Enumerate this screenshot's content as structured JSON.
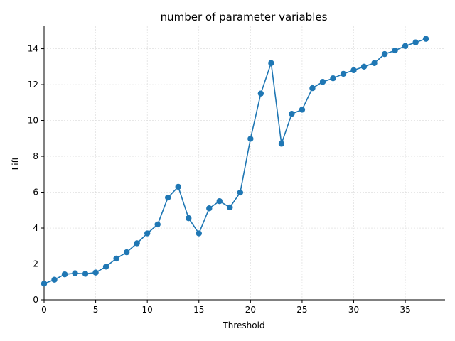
{
  "chart_data": {
    "type": "line",
    "title": "number of parameter variables",
    "xlabel": "Threshold",
    "ylabel": "Lift",
    "xlim": [
      0,
      38.85
    ],
    "ylim": [
      0,
      15.25
    ],
    "xticks": [
      0,
      5,
      10,
      15,
      20,
      25,
      30,
      35
    ],
    "yticks": [
      0,
      2,
      4,
      6,
      8,
      10,
      12,
      14
    ],
    "grid": true,
    "legend": "none",
    "color": "#1f77b4",
    "marker": "circle",
    "series": [
      {
        "x": [
          0,
          1,
          2,
          3,
          4,
          5,
          6,
          7,
          8,
          9,
          10,
          11,
          12,
          13,
          14,
          15,
          16,
          17,
          18,
          19,
          20,
          21,
          22,
          23,
          24,
          25,
          26,
          27,
          28,
          29,
          30,
          31,
          32,
          33,
          34,
          35,
          36,
          37
        ],
        "values": [
          0.9,
          1.12,
          1.42,
          1.48,
          1.45,
          1.52,
          1.85,
          2.3,
          2.65,
          3.15,
          3.7,
          4.2,
          5.7,
          6.3,
          4.55,
          3.7,
          5.1,
          5.5,
          5.15,
          5.98,
          8.98,
          11.5,
          13.2,
          8.7,
          10.37,
          10.6,
          11.8,
          12.15,
          12.35,
          12.6,
          12.8,
          13.0,
          13.2,
          13.7,
          13.9,
          14.15,
          14.35,
          14.55
        ]
      }
    ]
  }
}
